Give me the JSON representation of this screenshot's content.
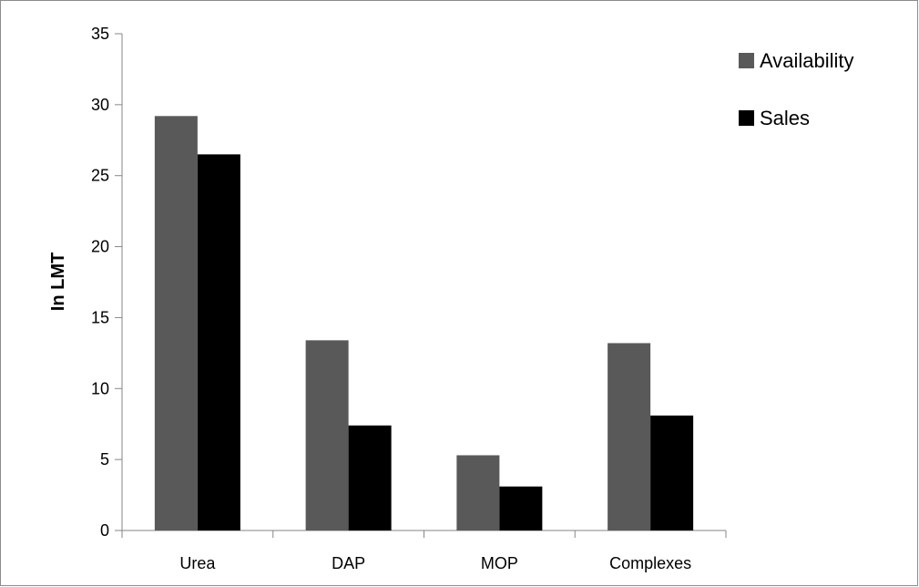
{
  "chart_data": {
    "type": "bar",
    "title": "",
    "xlabel": "",
    "ylabel": "In LMT",
    "categories": [
      "Urea",
      "DAP",
      "MOP",
      "Complexes"
    ],
    "series": [
      {
        "name": "Availability",
        "color": "#595959",
        "values": [
          29.2,
          13.4,
          5.3,
          13.2
        ]
      },
      {
        "name": "Sales",
        "color": "#000000",
        "values": [
          26.5,
          7.4,
          3.1,
          8.1
        ]
      }
    ],
    "ylim": [
      0,
      35
    ],
    "yticks": [
      "0",
      "5",
      "10",
      "15",
      "20",
      "25",
      "30",
      "35"
    ],
    "grid": false,
    "legend_position": "top-right"
  }
}
